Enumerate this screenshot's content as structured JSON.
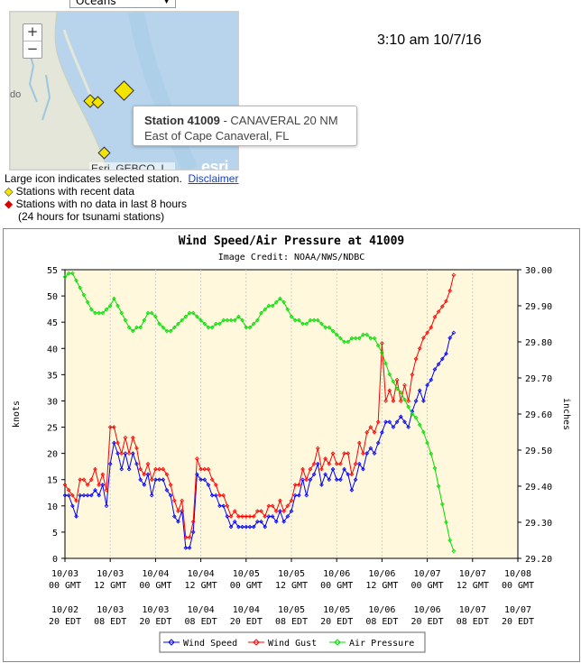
{
  "map": {
    "basemap_selector": "Oceans",
    "zoom_in": "+",
    "zoom_out": "−",
    "place_label": "do",
    "popup": {
      "station_label": "Station 41009",
      "station_name": " - CANAVERAL 20 NM",
      "location": "East of Cape Canaveral, FL"
    },
    "attribution": "Esri, GEBCO, I...",
    "logo": "esri"
  },
  "timestamp": "3:10 am 10/7/16",
  "map_legend": {
    "large_icon_note": "Large icon indicates selected station.",
    "disclaimer_link": "Disclaimer",
    "recent_data": "Stations with recent data",
    "no_data": "Stations with no data in last 8 hours",
    "tsunami_note": "(24 hours for tsunami stations)"
  },
  "colors": {
    "wind_speed": "#0000ff",
    "wind_gust": "#ff0000",
    "air_pressure": "#00dd00",
    "plot_bg": "#fff8dc",
    "station_recent": "#f2e300",
    "station_nodata": "#dd0000"
  },
  "chart_data": {
    "type": "line",
    "title": "Wind Speed/Air Pressure at 41009",
    "subtitle": "Image Credit: NOAA/NWS/NDBC",
    "ylabel": "knots",
    "y2label": "inches",
    "ylim": [
      0,
      55
    ],
    "y_ticks": [
      0,
      5,
      10,
      15,
      20,
      25,
      30,
      35,
      40,
      45,
      50,
      55
    ],
    "y2lim": [
      29.2,
      30.0
    ],
    "y2_ticks": [
      "29.20",
      "29.30",
      "29.40",
      "29.50",
      "29.60",
      "29.70",
      "29.80",
      "29.90",
      "30.00"
    ],
    "xlim": [
      0,
      120
    ],
    "x_ticks_hours": [
      0,
      12,
      24,
      36,
      48,
      60,
      72,
      84,
      96,
      108,
      120
    ],
    "x_gmt_labels": [
      [
        "10/03",
        "00 GMT"
      ],
      [
        "10/03",
        "12 GMT"
      ],
      [
        "10/04",
        "00 GMT"
      ],
      [
        "10/04",
        "12 GMT"
      ],
      [
        "10/05",
        "00 GMT"
      ],
      [
        "10/05",
        "12 GMT"
      ],
      [
        "10/06",
        "00 GMT"
      ],
      [
        "10/06",
        "12 GMT"
      ],
      [
        "10/07",
        "00 GMT"
      ],
      [
        "10/07",
        "12 GMT"
      ],
      [
        "10/08",
        "00 GMT"
      ]
    ],
    "x_edt_labels": [
      [
        "10/02",
        "20 EDT"
      ],
      [
        "10/03",
        "08 EDT"
      ],
      [
        "10/03",
        "20 EDT"
      ],
      [
        "10/04",
        "08 EDT"
      ],
      [
        "10/04",
        "20 EDT"
      ],
      [
        "10/05",
        "08 EDT"
      ],
      [
        "10/05",
        "20 EDT"
      ],
      [
        "10/06",
        "08 EDT"
      ],
      [
        "10/06",
        "20 EDT"
      ],
      [
        "10/07",
        "08 EDT"
      ],
      [
        "10/07",
        "20 EDT"
      ]
    ],
    "legend": [
      "Wind Speed",
      "Wind Gust",
      "Air Pressure"
    ],
    "series": [
      {
        "name": "Wind Speed",
        "axis": "left",
        "x": [
          0,
          1,
          2,
          3,
          4,
          5,
          6,
          7,
          8,
          9,
          10,
          11,
          12,
          13,
          14,
          15,
          16,
          17,
          18,
          19,
          20,
          21,
          22,
          23,
          24,
          25,
          26,
          27,
          28,
          29,
          30,
          31,
          32,
          33,
          34,
          35,
          36,
          37,
          38,
          39,
          40,
          41,
          42,
          43,
          44,
          45,
          46,
          47,
          48,
          49,
          50,
          51,
          52,
          53,
          54,
          55,
          56,
          57,
          58,
          59,
          60,
          61,
          62,
          63,
          64,
          65,
          66,
          67,
          68,
          69,
          70,
          71,
          72,
          73,
          74,
          75,
          76,
          77,
          78,
          79,
          80,
          81,
          82,
          83,
          84,
          85,
          86,
          87,
          88,
          89,
          90,
          91,
          92,
          93,
          94,
          95,
          96,
          97,
          98,
          99,
          100,
          101,
          102,
          103
        ],
        "values": [
          12,
          12,
          10,
          8,
          12,
          12,
          12,
          12,
          13,
          12,
          14,
          10,
          18,
          22,
          20,
          17,
          20,
          17,
          20,
          18,
          15,
          14,
          16,
          12,
          15,
          15,
          15,
          13,
          12,
          8,
          7,
          9,
          2,
          2,
          5,
          16,
          15,
          15,
          14,
          12,
          12,
          10,
          10,
          8,
          6,
          7,
          6,
          6,
          6,
          6,
          6,
          7,
          7,
          6,
          8,
          8,
          7,
          9,
          7,
          8,
          9,
          12,
          12,
          15,
          12,
          15,
          16,
          18,
          14,
          16,
          15,
          17,
          15,
          15,
          17,
          16,
          13,
          15,
          18,
          17,
          20,
          21,
          20,
          22,
          24,
          26,
          26,
          25,
          26,
          27,
          26,
          25,
          28,
          30,
          32,
          30,
          33,
          34,
          36,
          37,
          38,
          39,
          42,
          43
        ]
      },
      {
        "name": "Wind Gust",
        "axis": "left",
        "x": [
          0,
          1,
          2,
          3,
          4,
          5,
          6,
          7,
          8,
          9,
          10,
          11,
          12,
          13,
          14,
          15,
          16,
          17,
          18,
          19,
          20,
          21,
          22,
          23,
          24,
          25,
          26,
          27,
          28,
          29,
          30,
          31,
          32,
          33,
          34,
          35,
          36,
          37,
          38,
          39,
          40,
          41,
          42,
          43,
          44,
          45,
          46,
          47,
          48,
          49,
          50,
          51,
          52,
          53,
          54,
          55,
          56,
          57,
          58,
          59,
          60,
          61,
          62,
          63,
          64,
          65,
          66,
          67,
          68,
          69,
          70,
          71,
          72,
          73,
          74,
          75,
          76,
          77,
          78,
          79,
          80,
          81,
          82,
          83,
          84,
          85,
          86,
          87,
          88,
          89,
          90,
          91,
          92,
          93,
          94,
          95,
          96,
          97,
          98,
          99,
          100,
          101,
          102,
          103
        ],
        "values": [
          14,
          13,
          12,
          11,
          15,
          15,
          14,
          15,
          17,
          14,
          16,
          13,
          25,
          25,
          22,
          20,
          23,
          20,
          23,
          21,
          17,
          16,
          18,
          15,
          17,
          17,
          17,
          16,
          14,
          11,
          9,
          11,
          4,
          4,
          7,
          19,
          17,
          17,
          17,
          15,
          14,
          12,
          12,
          10,
          8,
          9,
          8,
          8,
          8,
          8,
          8,
          9,
          9,
          8,
          10,
          10,
          9,
          11,
          9,
          10,
          11,
          14,
          14,
          17,
          15,
          17,
          18,
          21,
          17,
          19,
          18,
          20,
          18,
          18,
          20,
          20,
          16,
          18,
          22,
          20,
          24,
          25,
          24,
          26,
          41,
          30,
          32,
          30,
          34,
          30,
          33,
          30,
          35,
          38,
          40,
          42,
          43,
          44,
          46,
          47,
          48,
          49,
          51,
          54
        ]
      },
      {
        "name": "Air Pressure",
        "axis": "right",
        "x": [
          0,
          1,
          2,
          3,
          4,
          5,
          6,
          7,
          8,
          9,
          10,
          11,
          12,
          13,
          14,
          15,
          16,
          17,
          18,
          19,
          20,
          21,
          22,
          23,
          24,
          25,
          26,
          27,
          28,
          29,
          30,
          31,
          32,
          33,
          34,
          35,
          36,
          37,
          38,
          39,
          40,
          41,
          42,
          43,
          44,
          45,
          46,
          47,
          48,
          49,
          50,
          51,
          52,
          53,
          54,
          55,
          56,
          57,
          58,
          59,
          60,
          61,
          62,
          63,
          64,
          65,
          66,
          67,
          68,
          69,
          70,
          71,
          72,
          73,
          74,
          75,
          76,
          77,
          78,
          79,
          80,
          81,
          82,
          83,
          84,
          85,
          86,
          87,
          88,
          89,
          90,
          91,
          92,
          93,
          94,
          95,
          96,
          97,
          98,
          99,
          100,
          101,
          102,
          103
        ],
        "values": [
          29.98,
          29.99,
          29.99,
          29.97,
          29.95,
          29.93,
          29.91,
          29.89,
          29.88,
          29.88,
          29.88,
          29.89,
          29.9,
          29.92,
          29.9,
          29.88,
          29.86,
          29.84,
          29.83,
          29.84,
          29.84,
          29.86,
          29.88,
          29.88,
          29.87,
          29.85,
          29.84,
          29.83,
          29.83,
          29.84,
          29.85,
          29.86,
          29.87,
          29.88,
          29.88,
          29.87,
          29.86,
          29.85,
          29.84,
          29.84,
          29.85,
          29.85,
          29.86,
          29.86,
          29.86,
          29.86,
          29.87,
          29.86,
          29.84,
          29.84,
          29.85,
          29.86,
          29.88,
          29.89,
          29.9,
          29.9,
          29.91,
          29.92,
          29.91,
          29.89,
          29.87,
          29.86,
          29.86,
          29.85,
          29.85,
          29.86,
          29.86,
          29.86,
          29.85,
          29.84,
          29.84,
          29.83,
          29.82,
          29.81,
          29.8,
          29.8,
          29.81,
          29.81,
          29.81,
          29.82,
          29.82,
          29.81,
          29.81,
          29.79,
          29.77,
          29.74,
          29.71,
          29.69,
          29.67,
          29.66,
          29.64,
          29.62,
          29.6,
          29.59,
          29.57,
          29.55,
          29.52,
          29.49,
          29.45,
          29.4,
          29.35,
          29.3,
          29.25,
          29.22
        ]
      }
    ]
  }
}
